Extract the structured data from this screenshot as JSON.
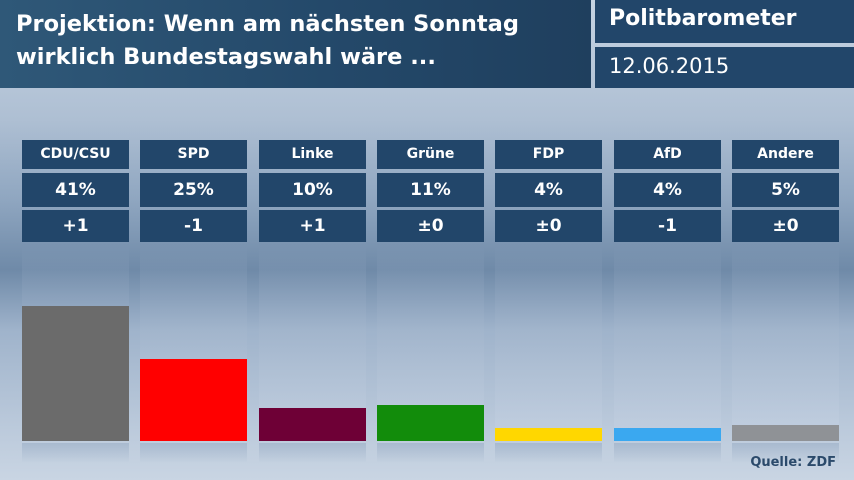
{
  "header": {
    "title_line1": "Projektion: Wenn am nächsten Sonntag",
    "title_line2": "wirklich Bundestagswahl wäre ...",
    "brand": "Politbarometer",
    "date": "12.06.2015"
  },
  "source": "Quelle: ZDF",
  "chart_data": {
    "type": "bar",
    "title": "Projektion: Wenn am nächsten Sonntag wirklich Bundestagswahl wäre ...",
    "categories": [
      "CDU/CSU",
      "SPD",
      "Linke",
      "Grüne",
      "FDP",
      "AfD",
      "Andere"
    ],
    "values": [
      41,
      25,
      10,
      11,
      4,
      4,
      5
    ],
    "value_labels": [
      "41%",
      "25%",
      "10%",
      "11%",
      "4%",
      "4%",
      "5%"
    ],
    "changes": [
      "+1",
      "-1",
      "+1",
      "±0",
      "±0",
      "-1",
      "±0"
    ],
    "colors": [
      "#6b6b6b",
      "#ff0000",
      "#6e0036",
      "#128c0b",
      "#ffd700",
      "#3aa8f0",
      "#8f9296"
    ],
    "ylim": [
      0,
      60
    ],
    "grid": false,
    "legend": "none"
  }
}
